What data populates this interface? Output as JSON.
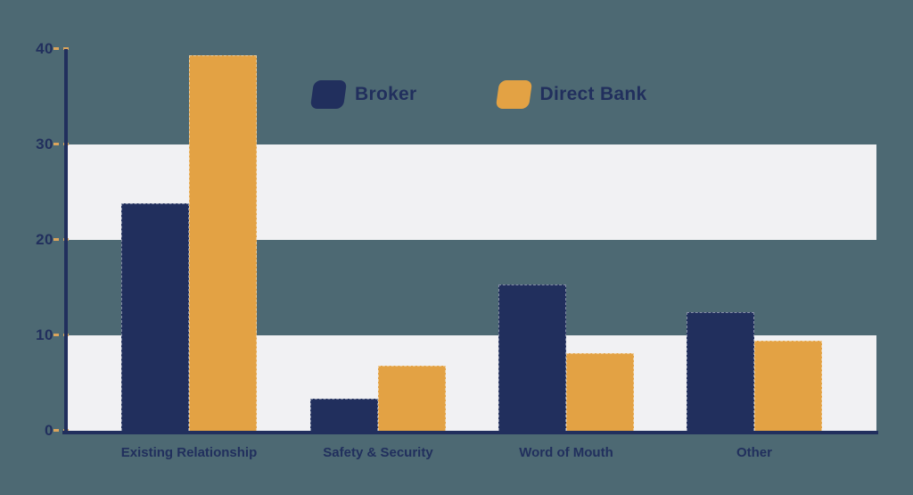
{
  "chart_data": {
    "type": "bar",
    "title": "",
    "xlabel": "",
    "ylabel": "",
    "categories": [
      "Existing Relationship",
      "Safety & Security",
      "Word of Mouth",
      "Other"
    ],
    "series": [
      {
        "name": "Broker",
        "color": "#212f5d",
        "values": [
          23.8,
          3.4,
          15.3,
          12.4
        ]
      },
      {
        "name": "Direct Bank",
        "color": "#e3a244",
        "values": [
          39.3,
          6.8,
          8.1,
          9.4
        ]
      }
    ],
    "ylim": [
      0,
      40
    ],
    "yticks": [
      40,
      30,
      20,
      10,
      0
    ],
    "grid": "alternating-horizontal-bands",
    "legend_position": "top-center"
  },
  "theme": {
    "background": "#4d6973",
    "band": "#f1f1f3",
    "axis": "#212f5d",
    "tick_dash": "#dba45c",
    "label": "#212f5d"
  }
}
